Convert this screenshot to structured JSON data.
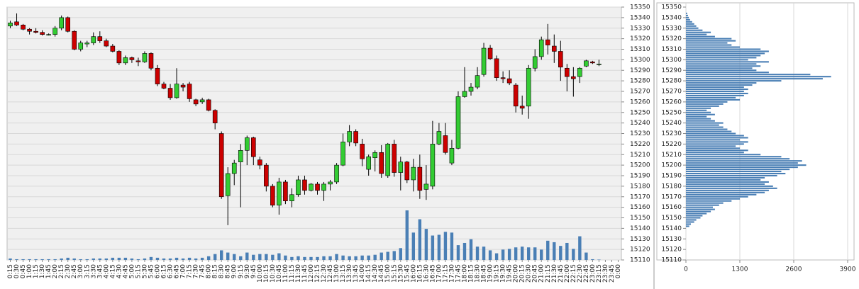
{
  "chart_data": [
    {
      "type": "candlestick",
      "categories": [
        "0:15",
        "0:30",
        "0:45",
        "1:00",
        "1:15",
        "1:30",
        "1:45",
        "2:00",
        "2:15",
        "2:30",
        "2:45",
        "3:00",
        "3:15",
        "3:30",
        "3:45",
        "4:00",
        "4:15",
        "4:30",
        "4:45",
        "5:00",
        "5:15",
        "5:30",
        "5:45",
        "6:00",
        "6:15",
        "6:30",
        "6:45",
        "7:00",
        "7:15",
        "7:30",
        "7:45",
        "8:00",
        "8:15",
        "8:30",
        "8:45",
        "9:00",
        "9:15",
        "9:30",
        "9:45",
        "10:00",
        "10:15",
        "10:30",
        "10:45",
        "11:00",
        "11:15",
        "11:30",
        "11:45",
        "12:00",
        "12:15",
        "12:30",
        "12:45",
        "13:00",
        "13:15",
        "13:30",
        "13:45",
        "14:00",
        "14:15",
        "14:30",
        "14:45",
        "15:00",
        "15:15",
        "15:30",
        "15:45",
        "16:00",
        "16:15",
        "16:30",
        "16:45",
        "17:00",
        "17:15",
        "17:30",
        "17:45",
        "18:00",
        "18:15",
        "18:30",
        "18:45",
        "19:00",
        "19:15",
        "19:30",
        "19:45",
        "20:00",
        "20:15",
        "20:30",
        "20:45",
        "21:00",
        "21:15",
        "21:30",
        "21:45",
        "22:00",
        "22:15",
        "22:30",
        "22:45",
        "23:00",
        "23:15",
        "23:30",
        "23:45",
        "0:00"
      ],
      "open": [
        15332,
        15336,
        15333,
        15329,
        15327,
        15326,
        15324,
        15324,
        15330,
        15340,
        15327,
        15310,
        15315,
        15316,
        15322,
        15318,
        15313,
        15308,
        15297,
        15302,
        15299,
        15298,
        15306,
        15292,
        15277,
        15273,
        15264,
        15276,
        15277,
        15262,
        15260,
        15262,
        15252,
        15230,
        15171,
        15192,
        15203,
        15214,
        15226,
        15205,
        15200,
        15180,
        15162,
        15184,
        15166,
        15172,
        15186,
        15176,
        15182,
        15176,
        15182,
        15184,
        15200,
        15222,
        15232,
        15220,
        15196,
        15207,
        15212,
        15190,
        15220,
        15193,
        15203,
        15186,
        15198,
        15177,
        15180,
        15220,
        15228,
        15202,
        15216,
        15265,
        15270,
        15274,
        15286,
        15311,
        15301,
        15283,
        15282,
        15276,
        15256,
        15256,
        15292,
        15303,
        15319,
        15313,
        15308,
        15292,
        15284,
        15284,
        15294,
        15298,
        15296,
        null,
        null,
        null
      ],
      "high": [
        15337,
        15344,
        15334,
        15330,
        15330,
        15328,
        15325,
        15332,
        15342,
        15341,
        15328,
        15318,
        15318,
        15326,
        15327,
        15320,
        15315,
        15309,
        15304,
        15303,
        15302,
        15308,
        15307,
        15295,
        15279,
        15277,
        15292,
        15278,
        15279,
        15263,
        15264,
        15263,
        15253,
        15232,
        15198,
        15205,
        15220,
        15228,
        15227,
        15208,
        15202,
        15182,
        15188,
        15186,
        15178,
        15190,
        15190,
        15183,
        15184,
        15184,
        15186,
        15202,
        15230,
        15238,
        15234,
        15225,
        15210,
        15214,
        15219,
        15221,
        15224,
        15208,
        15204,
        15206,
        15210,
        15200,
        15242,
        15240,
        15240,
        15224,
        15270,
        15293,
        15278,
        15293,
        15316,
        15314,
        15304,
        15289,
        15290,
        15278,
        15266,
        15295,
        15310,
        15322,
        15334,
        15324,
        15318,
        15296,
        15293,
        15293,
        15300,
        15299,
        15300,
        null,
        null,
        null
      ],
      "low": [
        15330,
        15332,
        15328,
        15324,
        15325,
        15323,
        15323,
        15322,
        15328,
        15326,
        15309,
        15308,
        15312,
        15314,
        15316,
        15312,
        15307,
        15295,
        15295,
        15297,
        15294,
        15297,
        15290,
        15275,
        15272,
        15262,
        15263,
        15270,
        15260,
        15256,
        15258,
        15251,
        15234,
        15168,
        15143,
        15181,
        15160,
        15200,
        15200,
        15196,
        15175,
        15160,
        15153,
        15163,
        15160,
        15170,
        15172,
        15175,
        15172,
        15166,
        15176,
        15182,
        15199,
        15218,
        15218,
        15199,
        15190,
        15194,
        15188,
        15188,
        15189,
        15176,
        15183,
        15175,
        15168,
        15167,
        15177,
        15219,
        15210,
        15200,
        15215,
        15264,
        15266,
        15272,
        15284,
        15300,
        15280,
        15278,
        15276,
        15250,
        15248,
        15244,
        15289,
        15300,
        15305,
        15297,
        15280,
        15270,
        15265,
        15278,
        15293,
        15296,
        15294,
        null,
        null,
        null
      ],
      "close": [
        15335,
        15333,
        15329,
        15327,
        15326,
        15324,
        15324,
        15330,
        15340,
        15327,
        15310,
        15316,
        15316,
        15322,
        15318,
        15313,
        15308,
        15297,
        15302,
        15300,
        15298,
        15306,
        15292,
        15277,
        15273,
        15264,
        15277,
        15274,
        15263,
        15258,
        15262,
        15252,
        15240,
        15170,
        15192,
        15202,
        15214,
        15226,
        15208,
        15200,
        15180,
        15162,
        15184,
        15166,
        15172,
        15186,
        15176,
        15182,
        15176,
        15182,
        15184,
        15200,
        15222,
        15232,
        15221,
        15206,
        15208,
        15212,
        15192,
        15220,
        15193,
        15203,
        15186,
        15198,
        15176,
        15182,
        15220,
        15232,
        15212,
        15216,
        15265,
        15270,
        15274,
        15285,
        15311,
        15301,
        15283,
        15282,
        15278,
        15256,
        15254,
        15292,
        15303,
        15319,
        15314,
        15308,
        15293,
        15284,
        15282,
        15292,
        15299,
        15297,
        15296,
        null,
        null,
        null
      ],
      "volume": [
        200,
        100,
        100,
        100,
        100,
        100,
        100,
        100,
        200,
        300,
        200,
        100,
        100,
        200,
        200,
        200,
        300,
        300,
        300,
        200,
        100,
        200,
        400,
        300,
        200,
        200,
        300,
        200,
        300,
        200,
        300,
        500,
        800,
        1300,
        1000,
        800,
        500,
        1000,
        700,
        800,
        800,
        700,
        900,
        600,
        400,
        500,
        400,
        400,
        400,
        500,
        500,
        800,
        600,
        500,
        500,
        600,
        600,
        700,
        1000,
        1100,
        1200,
        1600,
        6700,
        3700,
        5500,
        4200,
        3300,
        3400,
        3800,
        3700,
        2000,
        2300,
        2800,
        1800,
        1800,
        1300,
        900,
        1400,
        1500,
        1700,
        1800,
        1700,
        1700,
        1400,
        2600,
        2400,
        1900,
        2300,
        1500,
        3200,
        1000,
        100,
        50,
        null,
        null,
        null
      ],
      "up_color": "#33cc33",
      "down_color": "#cc0000",
      "volume_color": "#4a7fb5",
      "ylim": [
        15110,
        15350
      ],
      "yticks": [
        15110,
        15120,
        15130,
        15140,
        15150,
        15160,
        15170,
        15180,
        15190,
        15200,
        15210,
        15220,
        15230,
        15240,
        15250,
        15260,
        15270,
        15280,
        15290,
        15300,
        15310,
        15320,
        15330,
        15340,
        15350
      ],
      "grid": true
    },
    {
      "type": "bar",
      "orientation": "horizontal",
      "categories": [
        15142,
        15144,
        15146,
        15148,
        15150,
        15152,
        15154,
        15156,
        15158,
        15160,
        15162,
        15164,
        15166,
        15168,
        15170,
        15172,
        15174,
        15176,
        15178,
        15180,
        15182,
        15184,
        15186,
        15188,
        15190,
        15192,
        15194,
        15196,
        15198,
        15200,
        15202,
        15204,
        15206,
        15208,
        15210,
        15212,
        15214,
        15216,
        15218,
        15220,
        15222,
        15224,
        15226,
        15228,
        15230,
        15232,
        15234,
        15236,
        15238,
        15240,
        15242,
        15244,
        15246,
        15248,
        15250,
        15252,
        15254,
        15256,
        15258,
        15260,
        15262,
        15264,
        15266,
        15268,
        15270,
        15272,
        15274,
        15276,
        15278,
        15280,
        15282,
        15284,
        15286,
        15288,
        15290,
        15292,
        15294,
        15296,
        15298,
        15300,
        15302,
        15304,
        15306,
        15308,
        15310,
        15312,
        15314,
        15316,
        15318,
        15320,
        15322,
        15324,
        15326,
        15328,
        15330,
        15332,
        15334,
        15336,
        15338,
        15340,
        15342,
        15344
      ],
      "values": [
        80,
        120,
        200,
        250,
        350,
        400,
        500,
        600,
        700,
        650,
        800,
        900,
        1100,
        1300,
        1500,
        1700,
        1900,
        2000,
        2200,
        2100,
        1900,
        2000,
        1800,
        1900,
        2200,
        2400,
        2300,
        2500,
        2700,
        2900,
        2700,
        2800,
        2500,
        2300,
        1800,
        1400,
        1500,
        1300,
        1200,
        1400,
        1500,
        1300,
        1500,
        1400,
        1200,
        1100,
        1000,
        900,
        800,
        900,
        700,
        600,
        500,
        700,
        600,
        500,
        600,
        800,
        900,
        1000,
        1300,
        1200,
        1400,
        1500,
        1400,
        1500,
        1400,
        1600,
        1700,
        2300,
        3300,
        3500,
        3000,
        2000,
        1700,
        1600,
        1800,
        1700,
        2000,
        1500,
        1700,
        1800,
        1900,
        2000,
        1800,
        1300,
        1100,
        1000,
        1200,
        1100,
        700,
        500,
        600,
        400,
        300,
        250,
        200,
        150,
        100,
        70,
        50,
        30
      ],
      "color": "#4a7fb5",
      "xlim": [
        0,
        3900
      ],
      "xticks": [
        0,
        1300,
        2600,
        3900
      ],
      "ylim": [
        15110,
        15350
      ],
      "yticks": [
        15110,
        15120,
        15130,
        15140,
        15150,
        15160,
        15170,
        15180,
        15190,
        15200,
        15210,
        15220,
        15230,
        15240,
        15250,
        15260,
        15270,
        15280,
        15290,
        15300,
        15310,
        15320,
        15330,
        15340,
        15350
      ],
      "grid": true
    }
  ]
}
